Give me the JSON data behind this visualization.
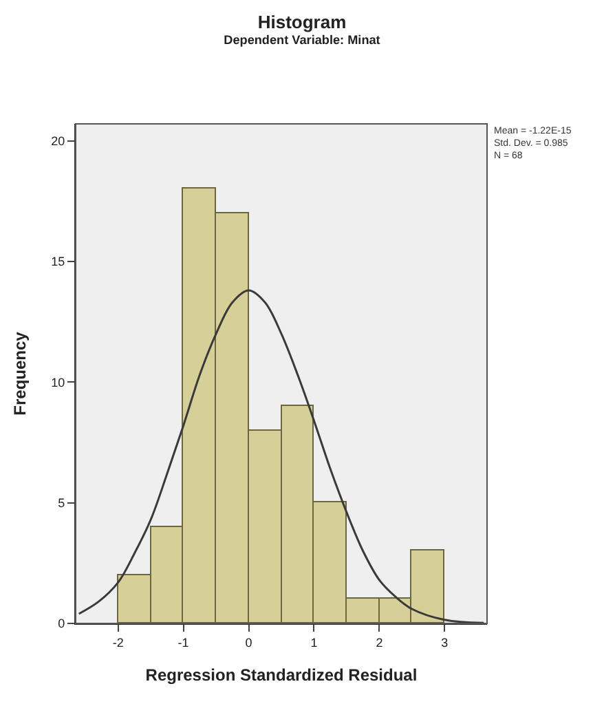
{
  "chart_data": {
    "type": "histogram",
    "title": "Histogram",
    "subtitle": "Dependent Variable: Minat",
    "xlabel": "Regression Standardized Residual",
    "ylabel": "Frequency",
    "bins": [
      -2,
      -1.5,
      -1,
      -0.5,
      0,
      0.5,
      1,
      1.5,
      2,
      2.5,
      3
    ],
    "values": [
      2,
      4,
      18,
      17,
      8,
      9,
      5,
      1,
      1,
      3
    ],
    "color": "#d6cf98",
    "series": [
      {
        "type": "line",
        "color": "#3a3a3a",
        "x": [
          -2.6,
          -2.3,
          -2,
          -1.75,
          -1.5,
          -1.25,
          -1,
          -0.75,
          -0.5,
          -0.25,
          0,
          0.25,
          0.5,
          0.75,
          1,
          1.25,
          1.5,
          1.75,
          2,
          2.25,
          2.5,
          3,
          3.6
        ],
        "values": [
          0.4,
          0.9,
          1.7,
          2.9,
          4.3,
          6.2,
          8.2,
          10.3,
          12.0,
          13.3,
          13.8,
          13.3,
          12.0,
          10.3,
          8.4,
          6.4,
          4.6,
          3.0,
          1.8,
          1.1,
          0.6,
          0.15,
          0.02
        ]
      }
    ],
    "xlim": [
      -2.65,
      3.65
    ],
    "xticks": [
      -2,
      -1,
      0,
      1,
      2,
      3
    ],
    "ylim": [
      0,
      20.7
    ],
    "yticks": [
      0,
      5,
      10,
      15,
      20
    ],
    "grid": false,
    "annotations": [
      "Mean = -1.22E-15",
      "Std. Dev. = 0.985",
      "N = 68"
    ]
  }
}
